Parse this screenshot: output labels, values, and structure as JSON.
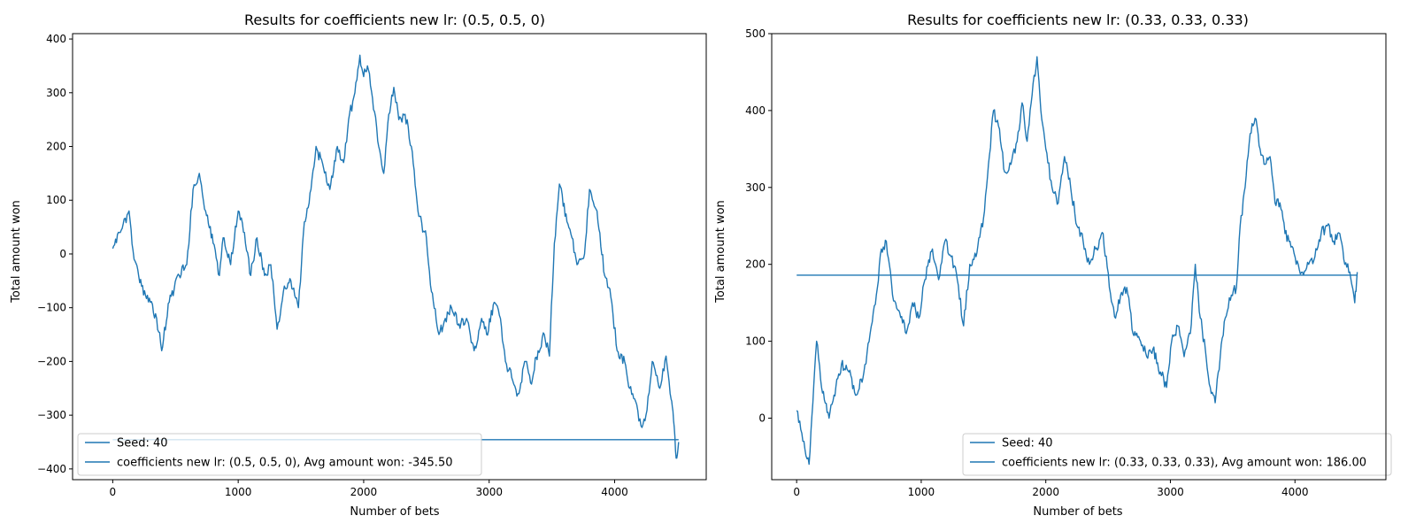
{
  "chart_data": [
    {
      "type": "line",
      "title": "Results for coefficients new lr: (0.5, 0.5, 0)",
      "xlabel": "Number of bets",
      "ylabel": "Total amount won",
      "xlim": [
        -320,
        4730
      ],
      "ylim": [
        -420,
        410
      ],
      "xticks": [
        0,
        1000,
        2000,
        3000,
        4000
      ],
      "yticks": [
        -400,
        -300,
        -200,
        -100,
        0,
        100,
        200,
        300,
        400
      ],
      "grid": false,
      "legend_position": "lower-left",
      "color": "#1f77b4",
      "series": [
        {
          "name": "Seed: 40",
          "kind": "random-walk",
          "x": [
            0,
            60,
            130,
            170,
            230,
            300,
            350,
            390,
            450,
            530,
            590,
            640,
            690,
            740,
            800,
            850,
            880,
            940,
            1000,
            1050,
            1100,
            1150,
            1210,
            1260,
            1310,
            1360,
            1420,
            1480,
            1520,
            1580,
            1620,
            1680,
            1730,
            1790,
            1840,
            1880,
            1930,
            1970,
            2000,
            2030,
            2070,
            2120,
            2160,
            2200,
            2240,
            2280,
            2330,
            2380,
            2440,
            2500,
            2540,
            2600,
            2650,
            2700,
            2760,
            2820,
            2880,
            2940,
            2980,
            3040,
            3090,
            3130,
            3180,
            3230,
            3290,
            3330,
            3390,
            3440,
            3480,
            3520,
            3560,
            3620,
            3660,
            3700,
            3760,
            3800,
            3860,
            3920,
            3970,
            4020,
            4080,
            4120,
            4160,
            4210,
            4250,
            4300,
            4360,
            4410,
            4450,
            4470,
            4490,
            4510
          ],
          "y": [
            10,
            40,
            80,
            -10,
            -60,
            -90,
            -120,
            -180,
            -90,
            -40,
            -20,
            120,
            150,
            80,
            20,
            -40,
            30,
            -20,
            80,
            40,
            -40,
            30,
            -40,
            -20,
            -140,
            -70,
            -50,
            -100,
            40,
            120,
            200,
            160,
            120,
            200,
            170,
            250,
            300,
            370,
            330,
            350,
            290,
            200,
            150,
            260,
            310,
            250,
            260,
            200,
            70,
            30,
            -70,
            -150,
            -120,
            -100,
            -130,
            -120,
            -180,
            -120,
            -150,
            -90,
            -120,
            -200,
            -230,
            -260,
            -200,
            -240,
            -180,
            -150,
            -190,
            20,
            130,
            60,
            30,
            -20,
            0,
            120,
            80,
            -40,
            -80,
            -180,
            -200,
            -250,
            -270,
            -320,
            -300,
            -200,
            -250,
            -190,
            -270,
            -310,
            -380,
            -350
          ]
        },
        {
          "name": "coefficients new lr: (0.5, 0.5, 0), Avg amount won: -345.50",
          "kind": "constant",
          "x": [
            0,
            4510
          ],
          "y": [
            -345.5,
            -345.5
          ]
        }
      ]
    },
    {
      "type": "line",
      "title": "Results for coefficients new lr: (0.33, 0.33, 0.33)",
      "xlabel": "Number of bets",
      "ylabel": "Total amount won",
      "xlim": [
        -200,
        4730
      ],
      "ylim": [
        -80,
        500
      ],
      "xticks": [
        0,
        1000,
        2000,
        3000,
        4000
      ],
      "yticks": [
        0,
        100,
        200,
        300,
        400,
        500
      ],
      "grid": false,
      "legend_position": "lower-right",
      "color": "#1f77b4",
      "series": [
        {
          "name": "Seed: 40",
          "kind": "random-walk",
          "x": [
            0,
            50,
            100,
            130,
            160,
            200,
            260,
            300,
            360,
            420,
            480,
            540,
            590,
            640,
            680,
            720,
            770,
            820,
            880,
            930,
            980,
            1030,
            1090,
            1140,
            1190,
            1240,
            1290,
            1340,
            1390,
            1440,
            1500,
            1540,
            1580,
            1620,
            1670,
            1720,
            1770,
            1810,
            1850,
            1890,
            1930,
            1960,
            2000,
            2050,
            2100,
            2150,
            2200,
            2250,
            2300,
            2350,
            2400,
            2460,
            2510,
            2560,
            2600,
            2650,
            2700,
            2760,
            2810,
            2860,
            2920,
            2970,
            3010,
            3060,
            3110,
            3160,
            3200,
            3240,
            3280,
            3320,
            3360,
            3400,
            3440,
            3490,
            3530,
            3560,
            3600,
            3640,
            3680,
            3720,
            3760,
            3800,
            3840,
            3880,
            3920,
            3960,
            4010,
            4060,
            4110,
            4160,
            4210,
            4260,
            4310,
            4360,
            4400,
            4440,
            4480,
            4500
          ],
          "y": [
            10,
            -30,
            -60,
            20,
            100,
            40,
            0,
            30,
            70,
            60,
            30,
            60,
            110,
            160,
            220,
            230,
            160,
            140,
            110,
            150,
            130,
            180,
            220,
            180,
            230,
            210,
            180,
            120,
            200,
            210,
            260,
            330,
            400,
            380,
            320,
            330,
            360,
            410,
            360,
            420,
            470,
            400,
            350,
            300,
            280,
            340,
            300,
            250,
            230,
            200,
            220,
            240,
            170,
            130,
            160,
            170,
            110,
            100,
            80,
            90,
            60,
            40,
            100,
            120,
            80,
            110,
            200,
            130,
            90,
            40,
            20,
            80,
            130,
            160,
            170,
            250,
            300,
            370,
            390,
            350,
            330,
            340,
            280,
            280,
            240,
            230,
            200,
            190,
            200,
            210,
            240,
            250,
            230,
            240,
            200,
            190,
            150,
            190
          ]
        },
        {
          "name": "coefficients new lr: (0.33, 0.33, 0.33), Avg amount won: 186.00",
          "kind": "constant",
          "x": [
            0,
            4500
          ],
          "y": [
            186.0,
            186.0
          ]
        }
      ]
    }
  ]
}
